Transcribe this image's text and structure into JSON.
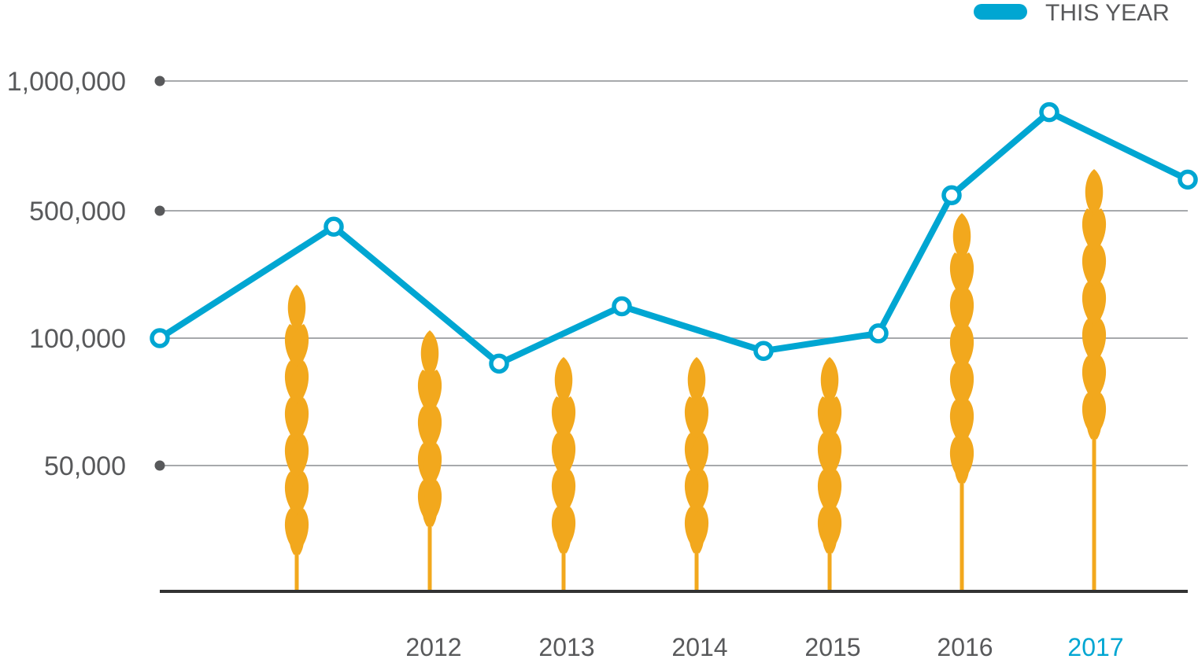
{
  "chart_data": {
    "type": "line",
    "legend": {
      "label": "THIS YEAR",
      "position": "top-right"
    },
    "y_ticks": [
      "1,000,000",
      "500,000",
      "100,000",
      "50,000"
    ],
    "y_tick_values": [
      1000000,
      500000,
      100000,
      50000
    ],
    "x_ticks": [
      "2012",
      "2013",
      "2014",
      "2015",
      "2016",
      "2017"
    ],
    "highlighted_x_tick": "2017",
    "grid": true,
    "series": [
      {
        "name": "THIS YEAR",
        "color": "#00a6d2",
        "values": [
          100000,
          450000,
          90000,
          200000,
          95000,
          115000,
          560000,
          880000,
          620000
        ]
      }
    ],
    "wheat_stalk_kernel_pairs": [
      6,
      4,
      4,
      4,
      4,
      6,
      6
    ],
    "colors": {
      "line": "#00a6d2",
      "wheat": "#f2a81d",
      "grid": "#a7a9ac",
      "baseline": "#333333",
      "text": "#58595b"
    }
  }
}
